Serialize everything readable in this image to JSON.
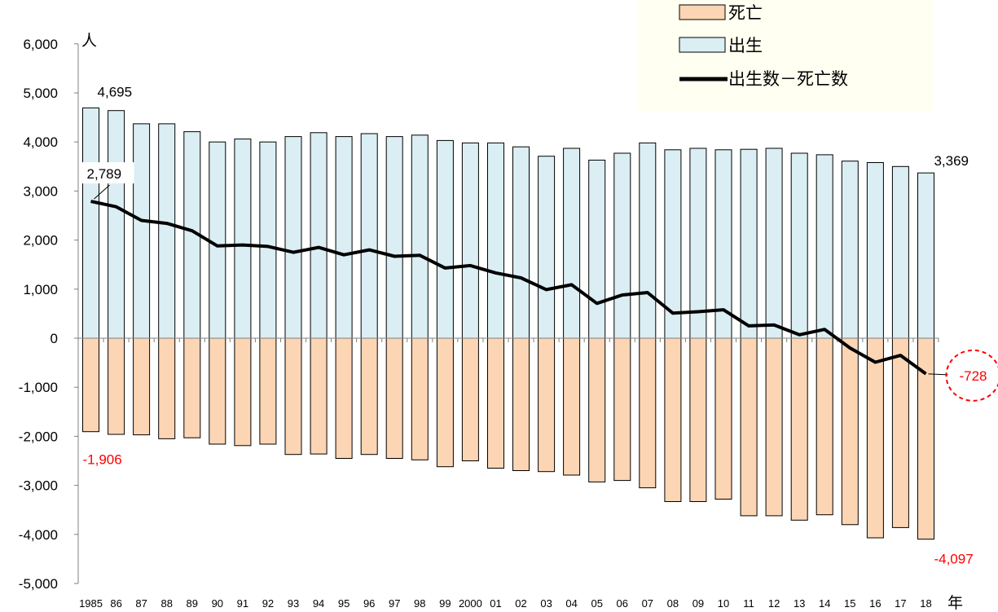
{
  "chart_data": {
    "type": "bar",
    "title": "",
    "ylabel": "人",
    "xlabel": "年",
    "ylim": [
      -5000,
      6000
    ],
    "yticks": [
      6000,
      5000,
      4000,
      3000,
      2000,
      1000,
      0,
      -1000,
      -2000,
      -3000,
      -4000,
      -5000
    ],
    "ytick_labels": [
      "6,000",
      "5,000",
      "4,000",
      "3,000",
      "2,000",
      "1,000",
      "0",
      "-1,000",
      "-2,000",
      "-3,000",
      "-4,000",
      "-5,000"
    ],
    "categories": [
      "1985",
      "86",
      "87",
      "88",
      "89",
      "90",
      "91",
      "92",
      "93",
      "94",
      "95",
      "96",
      "97",
      "98",
      "99",
      "2000",
      "01",
      "02",
      "03",
      "04",
      "05",
      "06",
      "07",
      "08",
      "09",
      "10",
      "11",
      "12",
      "13",
      "14",
      "15",
      "16",
      "17",
      "18"
    ],
    "series": [
      {
        "name": "死亡",
        "kind": "bar",
        "color": "#FCD5B4",
        "values": [
          -1906,
          -1960,
          -1970,
          -2050,
          -2030,
          -2160,
          -2190,
          -2160,
          -2370,
          -2360,
          -2450,
          -2370,
          -2450,
          -2480,
          -2620,
          -2500,
          -2650,
          -2700,
          -2720,
          -2790,
          -2930,
          -2900,
          -3050,
          -3330,
          -3330,
          -3280,
          -3620,
          -3620,
          -3710,
          -3600,
          -3800,
          -4070,
          -3860,
          -4097
        ]
      },
      {
        "name": "出生",
        "kind": "bar",
        "color": "#DAEEF3",
        "values": [
          4695,
          4640,
          4370,
          4370,
          4210,
          4000,
          4060,
          4000,
          4110,
          4190,
          4110,
          4170,
          4110,
          4140,
          4030,
          3980,
          3980,
          3900,
          3710,
          3870,
          3630,
          3770,
          3980,
          3840,
          3870,
          3840,
          3850,
          3870,
          3770,
          3740,
          3610,
          3580,
          3500,
          3369
        ]
      },
      {
        "name": "出生数－死亡数",
        "kind": "line",
        "color": "#000000",
        "values": [
          2789,
          2680,
          2400,
          2340,
          2190,
          1880,
          1900,
          1870,
          1750,
          1850,
          1700,
          1800,
          1670,
          1690,
          1430,
          1480,
          1330,
          1230,
          990,
          1090,
          710,
          880,
          930,
          510,
          540,
          580,
          250,
          270,
          70,
          180,
          -200,
          -490,
          -350,
          -728
        ]
      }
    ],
    "annotations": [
      {
        "text": "4,695",
        "series": 1,
        "index": 0,
        "color": "#000000"
      },
      {
        "text": "2,789",
        "series": 2,
        "index": 0,
        "color": "#000000"
      },
      {
        "text": "-1,906",
        "series": 0,
        "index": 0,
        "color": "#FF0000"
      },
      {
        "text": "3,369",
        "series": 1,
        "index": 33,
        "color": "#000000"
      },
      {
        "text": "-728",
        "series": 2,
        "index": 33,
        "color": "#FF0000",
        "circled": true
      },
      {
        "text": "-4,097",
        "series": 0,
        "index": 33,
        "color": "#FF0000"
      }
    ],
    "legend": {
      "placement": "top-right",
      "items": [
        {
          "label": "死亡",
          "kind": "box",
          "color": "#FCD5B4"
        },
        {
          "label": "出生",
          "kind": "box",
          "color": "#DAEEF3"
        },
        {
          "label": "出生数－死亡数",
          "kind": "line",
          "color": "#000000"
        }
      ]
    },
    "grid": false
  }
}
